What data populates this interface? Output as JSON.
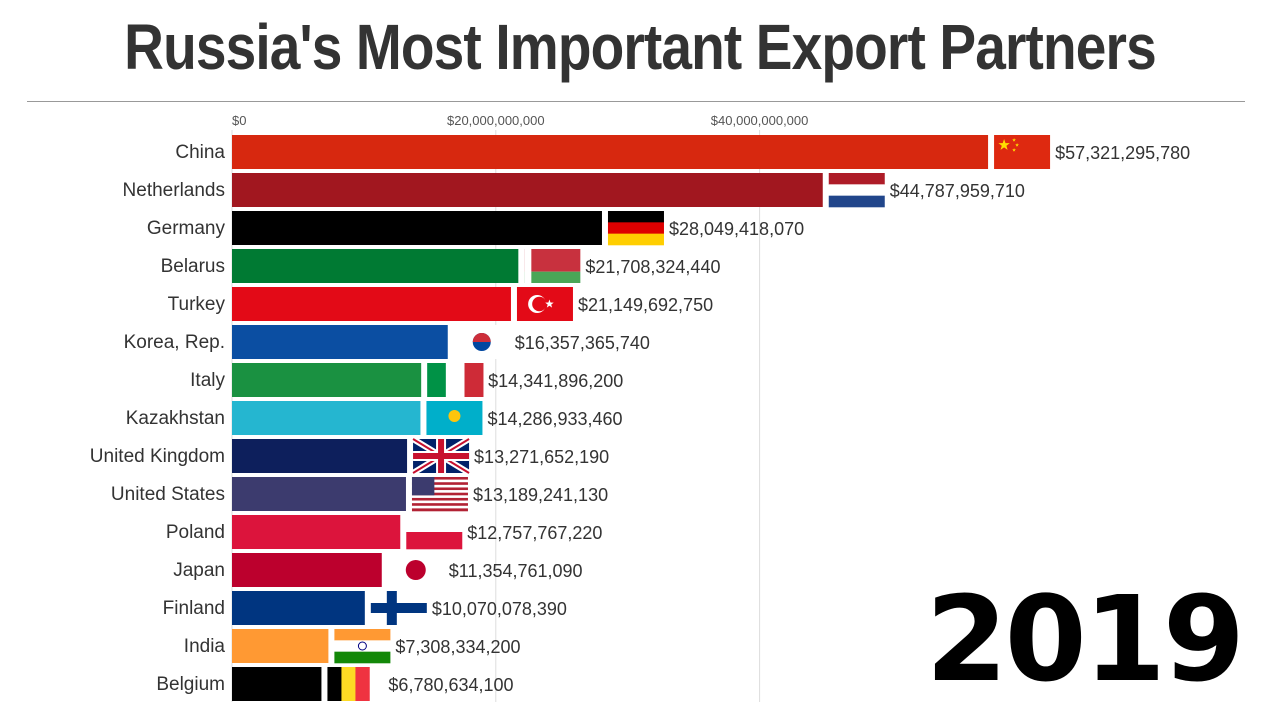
{
  "title": "Russia's Most Important Export Partners",
  "year": "2019",
  "chart_data": {
    "type": "bar",
    "orientation": "horizontal",
    "title": "Russia's Most Important Export Partners",
    "xlabel": "",
    "ylabel": "",
    "xlim": [
      0,
      62000000000
    ],
    "x_ticks": [
      0,
      20000000000,
      40000000000
    ],
    "x_tick_labels": [
      "$0",
      "$20,000,000,000",
      "$40,000,000,000"
    ],
    "grid": true,
    "categories": [
      "China",
      "Netherlands",
      "Germany",
      "Belarus",
      "Turkey",
      "Korea, Rep.",
      "Italy",
      "Kazakhstan",
      "United Kingdom",
      "United States",
      "Poland",
      "Japan",
      "Finland",
      "India",
      "Belgium"
    ],
    "values": [
      57321295780,
      44787959710,
      28049418070,
      21708324440,
      21149692750,
      16357365740,
      14341896200,
      14286933460,
      13271652190,
      13189241130,
      12757767220,
      11354761090,
      10070078390,
      7308334200,
      6780634100
    ],
    "value_labels": [
      "$57,321,295,780",
      "$44,787,959,710",
      "$28,049,418,070",
      "$21,708,324,440",
      "$21,149,692,750",
      "$16,357,365,740",
      "$14,341,896,200",
      "$14,286,933,460",
      "$13,271,652,190",
      "$13,189,241,130",
      "$12,757,767,220",
      "$11,354,761,090",
      "$10,070,078,390",
      "$7,308,334,200",
      "$6,780,634,100"
    ],
    "colors": [
      "#d7280f",
      "#a1171f",
      "#000000",
      "#007a33",
      "#e30a17",
      "#0b4ea2",
      "#1a9141",
      "#25b6d0",
      "#0d1f5c",
      "#3c3b6e",
      "#dc143c",
      "#bc002d",
      "#003580",
      "#ff9933",
      "#000000"
    ],
    "flags": [
      "cn",
      "nl",
      "de",
      "by",
      "tr",
      "kr",
      "it",
      "kz",
      "gb",
      "us",
      "pl",
      "jp",
      "fi",
      "in",
      "be"
    ]
  }
}
